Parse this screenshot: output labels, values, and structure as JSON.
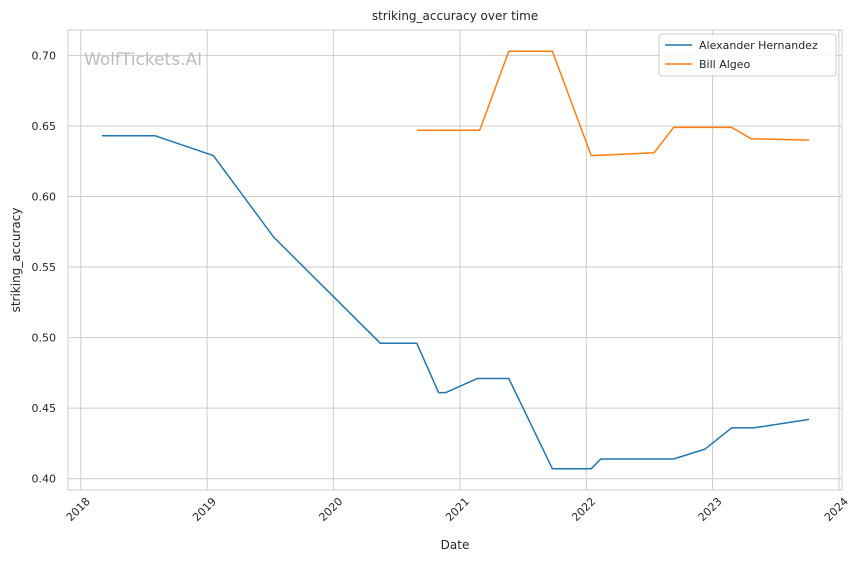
{
  "chart_data": {
    "type": "line",
    "title": "striking_accuracy over time",
    "xlabel": "Date",
    "ylabel": "striking_accuracy",
    "watermark": "WolfTickets.AI",
    "x_ticks": [
      "2018",
      "2019",
      "2020",
      "2021",
      "2022",
      "2023",
      "2024"
    ],
    "y_ticks": [
      "0.40",
      "0.45",
      "0.50",
      "0.55",
      "0.60",
      "0.65",
      "0.70"
    ],
    "xlim": [
      "2017-11-25",
      "2024-01-10"
    ],
    "ylim": [
      0.392,
      0.718
    ],
    "grid": true,
    "legend_position": "top-right",
    "colors": {
      "series_0": "#1f77b4",
      "series_1": "#ff7f0e",
      "grid": "#cccccc",
      "spine": "#cccccc"
    },
    "series": [
      {
        "name": "Alexander Hernandez",
        "color": "#1f77b4",
        "points": [
          [
            "2018-03-03",
            0.643
          ],
          [
            "2018-08-04",
            0.643
          ],
          [
            "2019-01-19",
            0.629
          ],
          [
            "2019-07-13",
            0.571
          ],
          [
            "2020-05-16",
            0.496
          ],
          [
            "2020-08-29",
            0.496
          ],
          [
            "2020-10-31",
            0.461
          ],
          [
            "2020-11-21",
            0.461
          ],
          [
            "2021-02-20",
            0.471
          ],
          [
            "2021-05-22",
            0.471
          ],
          [
            "2021-09-25",
            0.407
          ],
          [
            "2022-01-15",
            0.407
          ],
          [
            "2022-02-12",
            0.414
          ],
          [
            "2022-09-10",
            0.414
          ],
          [
            "2022-12-10",
            0.421
          ],
          [
            "2023-02-25",
            0.436
          ],
          [
            "2023-04-29",
            0.436
          ],
          [
            "2023-10-07",
            0.442
          ]
        ]
      },
      {
        "name": "Bill Algeo",
        "color": "#ff7f0e",
        "points": [
          [
            "2020-08-29",
            0.647
          ],
          [
            "2021-02-27",
            0.647
          ],
          [
            "2021-05-22",
            0.703
          ],
          [
            "2021-09-25",
            0.703
          ],
          [
            "2022-01-15",
            0.629
          ],
          [
            "2022-07-16",
            0.631
          ],
          [
            "2022-09-10",
            0.649
          ],
          [
            "2023-02-25",
            0.649
          ],
          [
            "2023-04-22",
            0.641
          ],
          [
            "2023-10-07",
            0.64
          ]
        ]
      }
    ]
  }
}
